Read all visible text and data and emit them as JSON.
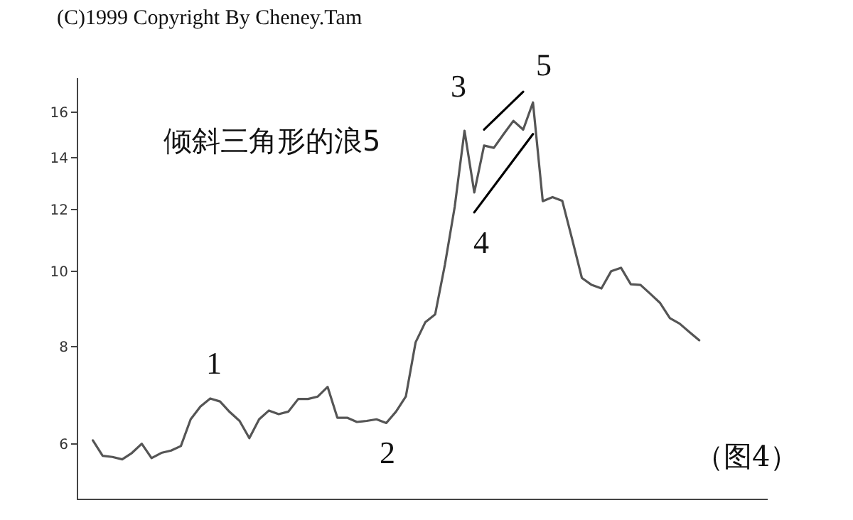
{
  "chart_data": {
    "type": "line",
    "title": "倾斜三角形的浪5",
    "categories": [
      null,
      null,
      null,
      null,
      null,
      null,
      null,
      null,
      null,
      null,
      null,
      null,
      null,
      null,
      null,
      null,
      null,
      null,
      null,
      null,
      null,
      null,
      null,
      null,
      null,
      null,
      null,
      null,
      null,
      null,
      null,
      null,
      null,
      null,
      null,
      null,
      null,
      null,
      null,
      null,
      null,
      null,
      null,
      null,
      null,
      null,
      null,
      null,
      null,
      null,
      null,
      null,
      null,
      null,
      null,
      null,
      null,
      null,
      null,
      null,
      null,
      null,
      null
    ],
    "series": [
      {
        "color": "#555555",
        "values": [
          6.06,
          5.79,
          5.77,
          5.73,
          5.84,
          6.0,
          5.75,
          5.84,
          5.88,
          5.96,
          6.45,
          6.7,
          6.86,
          6.8,
          6.59,
          6.42,
          6.1,
          6.45,
          6.62,
          6.55,
          6.6,
          6.85,
          6.85,
          6.9,
          7.1,
          6.48,
          6.48,
          6.4,
          6.42,
          6.45,
          6.38,
          6.6,
          6.9,
          8.1,
          8.6,
          8.8,
          10.2,
          12.1,
          15.15,
          12.62,
          14.5,
          14.4,
          15.0,
          15.6,
          15.2,
          16.47,
          12.3,
          12.45,
          12.31,
          11.0,
          9.8,
          9.6,
          9.5,
          10.0,
          10.1,
          9.62,
          9.6,
          9.35,
          9.1,
          8.7,
          8.56,
          8.35,
          8.15
        ]
      },
      {
        "color": "#000000",
        "values": [
          null,
          null,
          null,
          null,
          null,
          null,
          null,
          null,
          null,
          null,
          null,
          null,
          null,
          null,
          null,
          null,
          null,
          null,
          null,
          null,
          null,
          null,
          null,
          null,
          null,
          null,
          null,
          null,
          null,
          null,
          null,
          null,
          null,
          null,
          null,
          null,
          null,
          null,
          null,
          null,
          15.2,
          null,
          null,
          null,
          17.0,
          null,
          null,
          null,
          null,
          null,
          null,
          null,
          null,
          null,
          null,
          null,
          null,
          null,
          null,
          null,
          null,
          null,
          null
        ]
      },
      {
        "color": "#000000",
        "values": [
          null,
          null,
          null,
          null,
          null,
          null,
          null,
          null,
          null,
          null,
          null,
          null,
          null,
          null,
          null,
          null,
          null,
          null,
          null,
          null,
          null,
          null,
          null,
          null,
          null,
          null,
          null,
          null,
          null,
          null,
          null,
          null,
          null,
          null,
          null,
          null,
          null,
          null,
          null,
          11.9,
          null,
          null,
          null,
          null,
          null,
          15.0,
          null,
          null,
          null,
          null,
          null,
          null,
          null,
          null,
          null,
          null,
          null,
          null,
          null,
          null,
          null,
          null,
          null
        ]
      }
    ],
    "log": true,
    "ylim": [
      5.1,
      17.7
    ],
    "yticks": [
      6,
      8,
      10,
      12,
      14,
      16
    ],
    "tick_labels": "y",
    "marker": "none",
    "line_style": "solid",
    "annotations": [
      "(C)1999 Copyright By Cheney.Tam",
      "1",
      "2",
      "3",
      "4",
      "5",
      "（图4）"
    ]
  }
}
